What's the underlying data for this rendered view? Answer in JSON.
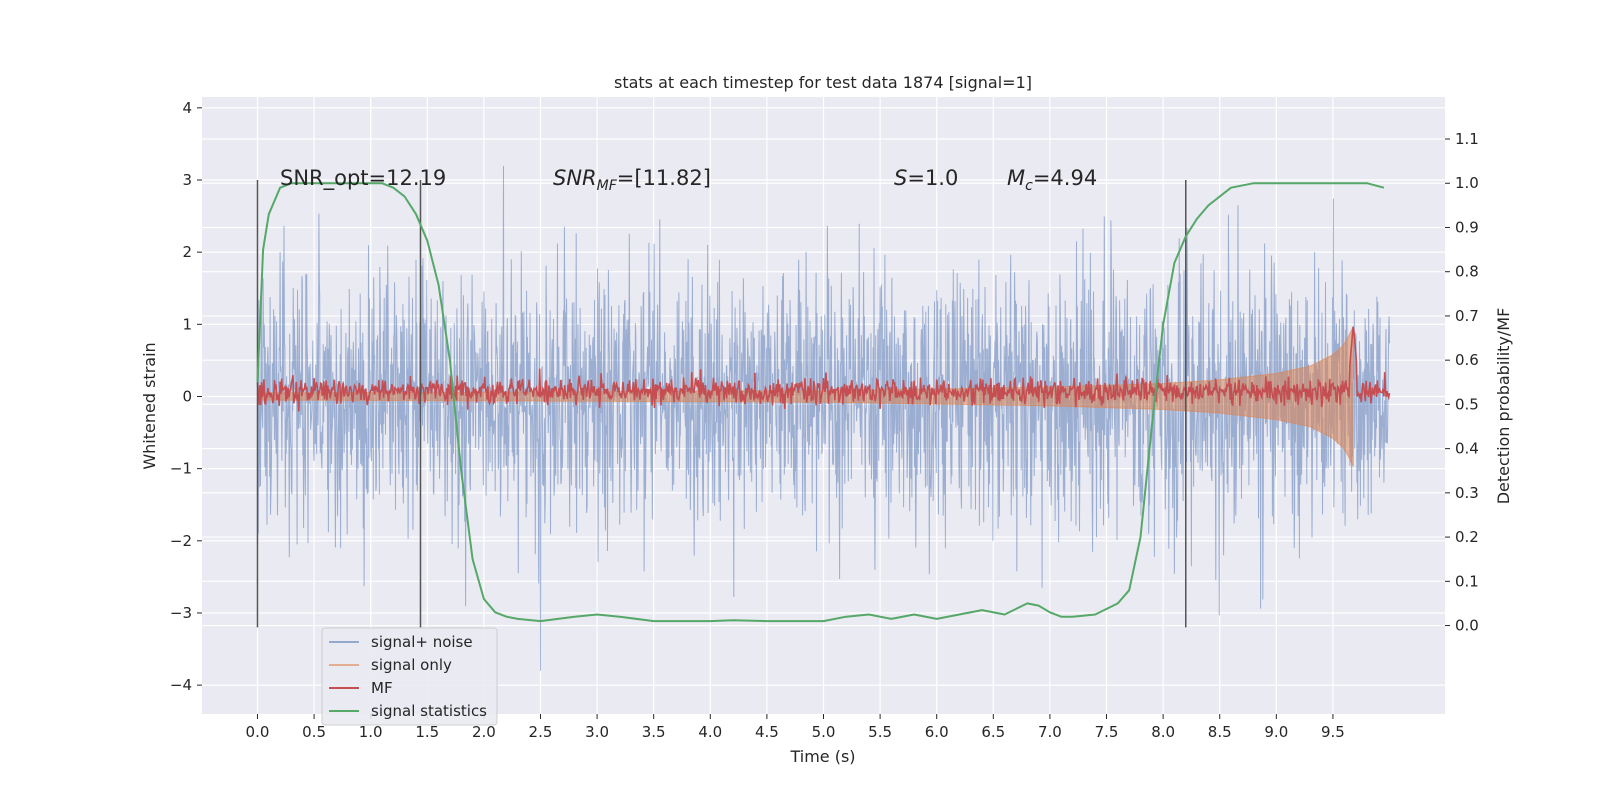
{
  "chart_data": {
    "type": "line",
    "title": "stats at each timestep for test data 1874 [signal=1]",
    "xlabel": "Time (s)",
    "ylabel": "Whitened strain",
    "ylabel_right": "Detection probability/MF",
    "xlim": [
      -0.49,
      10.49
    ],
    "ylim": [
      -4.4,
      4.15
    ],
    "ylim_right": [
      -0.2,
      1.195
    ],
    "x_ticks": [
      "0.0",
      "0.5",
      "1.0",
      "1.5",
      "2.0",
      "2.5",
      "3.0",
      "3.5",
      "4.0",
      "4.5",
      "5.0",
      "5.5",
      "6.0",
      "6.5",
      "7.0",
      "7.5",
      "8.0",
      "8.5",
      "9.0",
      "9.5"
    ],
    "y_ticks_left": [
      "4",
      "3",
      "2",
      "1",
      "0",
      "−1",
      "−2",
      "−3",
      "−4"
    ],
    "y_ticks_right": [
      "1.1",
      "1.0",
      "0.9",
      "0.8",
      "0.7",
      "0.6",
      "0.5",
      "0.4",
      "0.3",
      "0.2",
      "0.1",
      "0.0"
    ],
    "grid": true,
    "legend_position": "lower-left",
    "annotations": {
      "snr_opt": "SNR_opt=12.19",
      "snr_mf_base": "SNR",
      "snr_mf_sub": "MF",
      "snr_mf_value": "=[11.82]",
      "s_base": "S",
      "s_value": "=1.0",
      "mc_base": "M",
      "mc_sub": "c",
      "mc_value": "=4.94"
    },
    "vertical_lines_x": [
      0.0,
      1.44,
      8.2
    ],
    "series": [
      {
        "name": "signal+ noise",
        "color": "#4c72b0",
        "axis": "left",
        "x_range": [
          0.0,
          10.0
        ],
        "typical_amplitude": 1.1,
        "max_amplitude": 3.8
      },
      {
        "name": "signal only",
        "color": "#dd8452",
        "axis": "left",
        "x_range": [
          0.0,
          9.68
        ],
        "envelope": [
          [
            0.0,
            0.05
          ],
          [
            2.0,
            0.06
          ],
          [
            5.0,
            0.08
          ],
          [
            7.0,
            0.13
          ],
          [
            8.0,
            0.18
          ],
          [
            8.5,
            0.23
          ],
          [
            9.0,
            0.32
          ],
          [
            9.3,
            0.42
          ],
          [
            9.5,
            0.58
          ],
          [
            9.6,
            0.72
          ],
          [
            9.68,
            0.97
          ]
        ]
      },
      {
        "name": "MF",
        "color": "#c44e52",
        "axis": "right",
        "x_range": [
          0.0,
          10.0
        ],
        "baseline": 0.53,
        "noise": 0.015,
        "peak": [
          9.68,
          0.68
        ]
      },
      {
        "name": "signal statistics",
        "color": "#55a868",
        "axis": "right",
        "x": [
          0.0,
          0.05,
          0.1,
          0.15,
          0.2,
          0.3,
          0.5,
          0.8,
          1.0,
          1.1,
          1.2,
          1.3,
          1.4,
          1.5,
          1.6,
          1.7,
          1.8,
          1.9,
          2.0,
          2.1,
          2.2,
          2.3,
          2.5,
          2.8,
          3.0,
          3.2,
          3.5,
          4.0,
          4.2,
          4.5,
          5.0,
          5.2,
          5.4,
          5.6,
          5.8,
          6.0,
          6.2,
          6.4,
          6.6,
          6.8,
          6.9,
          7.0,
          7.1,
          7.2,
          7.4,
          7.6,
          7.7,
          7.8,
          7.9,
          8.0,
          8.1,
          8.2,
          8.3,
          8.4,
          8.6,
          8.8,
          9.0,
          9.5,
          9.8,
          9.95
        ],
        "y": [
          0.55,
          0.85,
          0.93,
          0.96,
          0.99,
          1.0,
          1.0,
          1.0,
          1.0,
          1.0,
          0.99,
          0.97,
          0.93,
          0.87,
          0.77,
          0.6,
          0.35,
          0.15,
          0.06,
          0.03,
          0.02,
          0.015,
          0.01,
          0.02,
          0.025,
          0.02,
          0.01,
          0.01,
          0.012,
          0.01,
          0.01,
          0.02,
          0.025,
          0.015,
          0.025,
          0.015,
          0.025,
          0.035,
          0.025,
          0.05,
          0.045,
          0.03,
          0.02,
          0.02,
          0.025,
          0.05,
          0.08,
          0.2,
          0.45,
          0.68,
          0.82,
          0.88,
          0.92,
          0.95,
          0.99,
          1.0,
          1.0,
          1.0,
          1.0,
          0.99
        ]
      }
    ]
  }
}
